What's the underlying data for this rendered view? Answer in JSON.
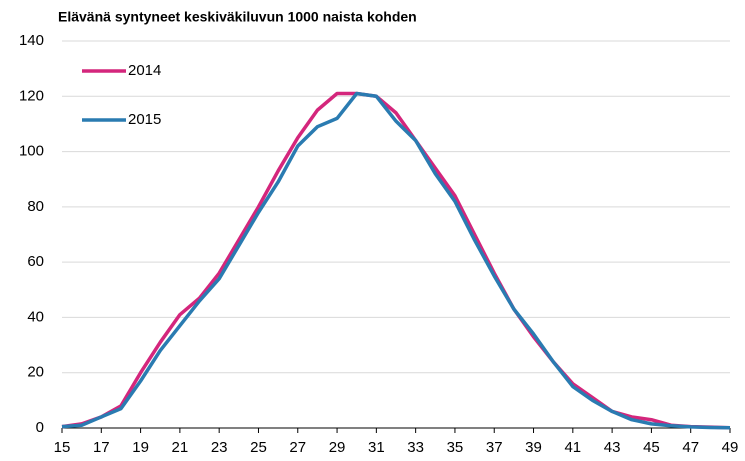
{
  "chart_data": {
    "type": "line",
    "title": "Elävänä syntyneet keskiväkiluvun 1000 naista kohden",
    "x": [
      15,
      16,
      17,
      18,
      19,
      20,
      21,
      22,
      23,
      24,
      25,
      26,
      27,
      28,
      29,
      30,
      31,
      32,
      33,
      34,
      35,
      36,
      37,
      38,
      39,
      40,
      41,
      42,
      43,
      44,
      45,
      46,
      47,
      48,
      49
    ],
    "series": [
      {
        "name": "2014",
        "color": "#d4267c",
        "values": [
          0.5,
          1.5,
          4,
          8,
          20,
          31,
          41,
          47,
          56,
          68,
          80,
          93,
          105,
          115,
          121,
          121,
          120,
          114,
          104,
          94,
          84,
          70,
          56,
          43,
          33,
          24,
          16,
          11,
          6,
          4,
          3,
          1,
          0.5,
          0.3,
          0.1
        ]
      },
      {
        "name": "2015",
        "color": "#2a7bb1",
        "values": [
          0.5,
          1,
          4,
          7,
          17,
          28,
          37,
          46,
          54,
          66,
          78,
          89,
          102,
          109,
          112,
          121,
          120,
          111,
          104,
          92,
          82,
          68,
          55,
          43,
          34,
          24,
          15,
          10,
          6,
          3,
          1.5,
          0.8,
          0.4,
          0.2,
          0.1
        ]
      }
    ],
    "xlim": [
      15,
      49
    ],
    "xticks": [
      15,
      17,
      19,
      21,
      23,
      25,
      27,
      29,
      31,
      33,
      35,
      37,
      39,
      41,
      43,
      45,
      47,
      49
    ],
    "ylim": [
      0,
      140
    ],
    "yticks": [
      0,
      20,
      40,
      60,
      80,
      100,
      120,
      140
    ],
    "grid": true,
    "legend": "top-left"
  }
}
